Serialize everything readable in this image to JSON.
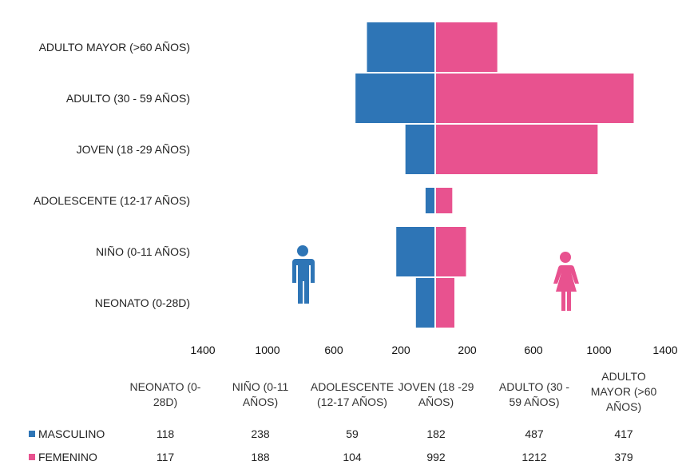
{
  "chart_data": {
    "type": "bar",
    "orientation": "horizontal-population-pyramid",
    "categories": [
      "ADULTO MAYOR (>60 AÑOS)",
      "ADULTO (30 - 59 AÑOS)",
      "JOVEN (18 -29 AÑOS)",
      "ADOLESCENTE (12-17 AÑOS)",
      "NIÑO (0-11 AÑOS)",
      "NEONATO (0-28D)"
    ],
    "series": [
      {
        "name": "MASCULINO",
        "color": "#2e75b6",
        "side": "left",
        "values": [
          417,
          487,
          182,
          59,
          238,
          118
        ]
      },
      {
        "name": "FEMENINO",
        "color": "#e8528f",
        "side": "right",
        "values": [
          379,
          1212,
          992,
          104,
          188,
          117
        ]
      }
    ],
    "x_tick_labels": [
      "1400",
      "1000",
      "600",
      "200",
      "200",
      "600",
      "1000",
      "1400"
    ],
    "x_tick_values": [
      -1400,
      -1000,
      -600,
      -200,
      200,
      600,
      1000,
      1400
    ],
    "xlim": [
      -1400,
      1400
    ],
    "legend_placement": "bottom-table",
    "icons": {
      "left": "male-person-icon",
      "right": "female-person-icon"
    }
  },
  "table": {
    "headers": [
      "NEONATO (0-\n28D)",
      "NIÑO (0-11\nAÑOS)",
      "ADOLESCENTE\n(12-17 AÑOS)",
      "JOVEN (18 -29\nAÑOS)",
      "ADULTO (30 -\n59 AÑOS)",
      "ADULTO\nMAYOR (>60\nAÑOS)"
    ],
    "rows": [
      {
        "label": "MASCULINO",
        "color": "#2e75b6",
        "values": [
          "118",
          "238",
          "59",
          "182",
          "487",
          "417"
        ]
      },
      {
        "label": "FEMENINO",
        "color": "#e8528f",
        "values": [
          "117",
          "188",
          "104",
          "992",
          "1212",
          "379"
        ]
      }
    ]
  }
}
